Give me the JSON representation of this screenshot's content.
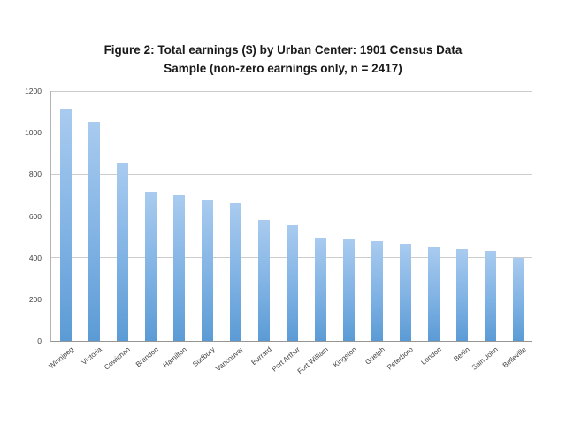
{
  "chart_data": {
    "type": "bar",
    "title": "Figure 2: Total earnings ($) by Urban Center: 1901 Census Data Sample (non-zero earnings only, n = 2417)",
    "title_lines": [
      "Figure 2: Total earnings ($) by Urban Center: 1901 Census Data",
      "Sample (non-zero earnings only, n = 2417)"
    ],
    "categories": [
      "Winnipeg",
      "Victoria",
      "Cowichan",
      "Brandon",
      "Hamilton",
      "Sudbury",
      "Vancouver",
      "Burrard",
      "Port Arthur",
      "Fort William",
      "Kingston",
      "Guelph",
      "Peterboro",
      "London",
      "Berlin",
      "Sain John",
      "Belleville"
    ],
    "values": [
      1115,
      1050,
      855,
      715,
      698,
      680,
      660,
      580,
      555,
      498,
      489,
      478,
      467,
      449,
      440,
      433,
      400
    ],
    "xlabel": "",
    "ylabel": "",
    "ylim": [
      0,
      1200
    ],
    "yticks": [
      0,
      200,
      400,
      600,
      800,
      1000,
      1200
    ],
    "grid": true,
    "legend": false,
    "colors": {
      "bar_gradient_top": "#A9CBEF",
      "bar_gradient_bottom": "#5B9BD5",
      "gridline": "#CCCCCC",
      "axis_line": "#959595",
      "tick_text": "#3F3F3F",
      "title_text": "#1A1A1A",
      "background": "#FFFFFF"
    }
  }
}
